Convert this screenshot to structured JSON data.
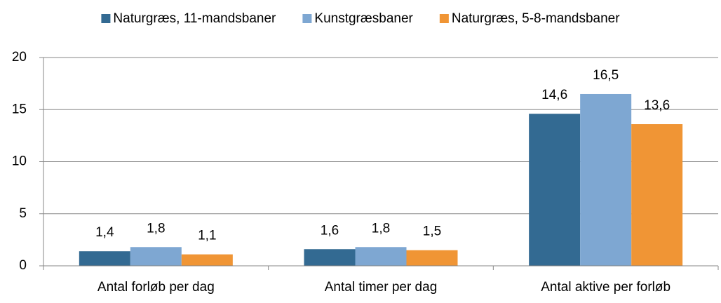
{
  "chart_data": {
    "type": "bar",
    "categories": [
      "Antal forløb per dag",
      "Antal timer per dag",
      "Antal aktive per forløb"
    ],
    "series": [
      {
        "name": "Naturgræs, 11-mandsbaner",
        "color": "#336a92",
        "values": [
          1.4,
          1.6,
          14.6
        ],
        "value_labels": [
          "1,4",
          "1,6",
          "14,6"
        ]
      },
      {
        "name": "Kunstgræsbaner",
        "color": "#7ea7d2",
        "values": [
          1.8,
          1.8,
          16.5
        ],
        "value_labels": [
          "1,8",
          "1,8",
          "16,5"
        ]
      },
      {
        "name": "Naturgræs, 5-8-mandsbaner",
        "color": "#f09535",
        "values": [
          1.1,
          1.5,
          13.6
        ],
        "value_labels": [
          "1,1",
          "1,5",
          "13,6"
        ]
      }
    ],
    "ylim": [
      0,
      20
    ],
    "yticks": [
      0,
      5,
      10,
      15,
      20
    ],
    "grid": true,
    "legend": "top"
  }
}
